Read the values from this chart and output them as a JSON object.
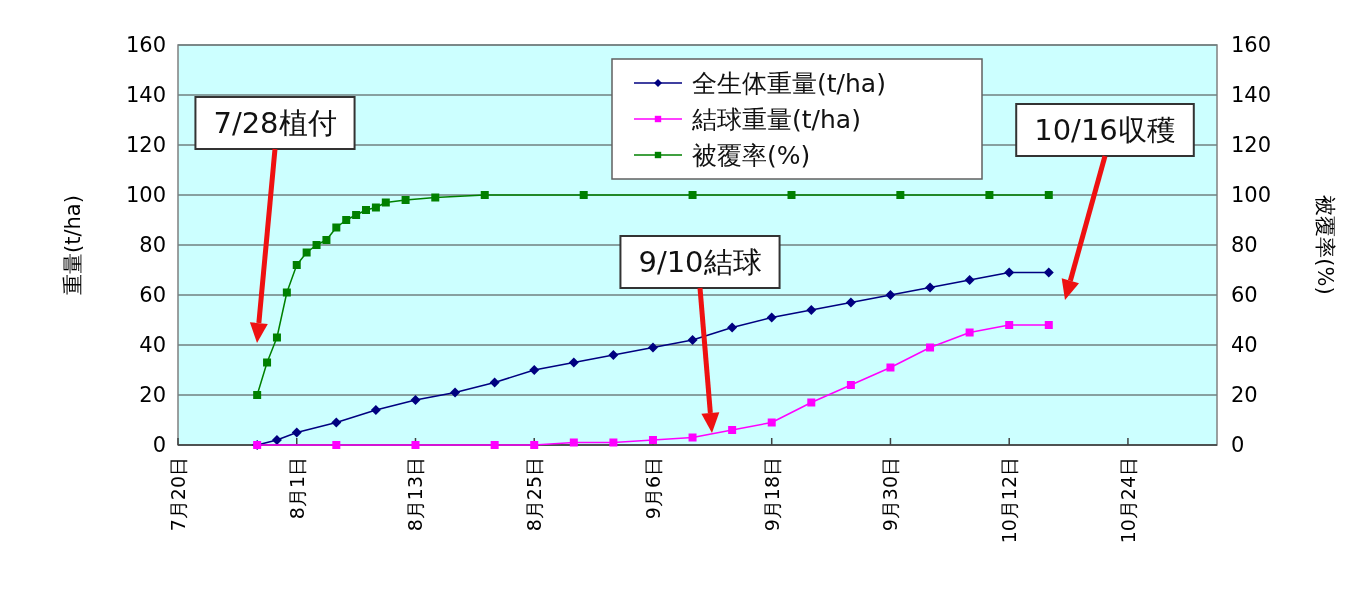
{
  "chart_data": {
    "type": "line",
    "ylabel": "重量(t/ha)",
    "y2label": "被覆率(%)",
    "xlim": [
      "--07-20",
      "--11-02"
    ],
    "xticks": [
      {
        "value": "--07-20",
        "label": "7月20日"
      },
      {
        "value": "--08-01",
        "label": "8月1日"
      },
      {
        "value": "--08-13",
        "label": "8月13日"
      },
      {
        "value": "--08-25",
        "label": "8月25日"
      },
      {
        "value": "--09-06",
        "label": "9月6日"
      },
      {
        "value": "--09-18",
        "label": "9月18日"
      },
      {
        "value": "--09-30",
        "label": "9月30日"
      },
      {
        "value": "--10-12",
        "label": "10月12日"
      },
      {
        "value": "--10-24",
        "label": "10月24日"
      }
    ],
    "ylim": [
      0,
      160
    ],
    "yticks": [
      0,
      20,
      40,
      60,
      80,
      100,
      120,
      140,
      160
    ],
    "y2lim": [
      0,
      160
    ],
    "y2ticks": [
      0,
      20,
      40,
      60,
      80,
      100,
      120,
      140,
      160
    ],
    "grid": "y",
    "legend": "top right",
    "series": [
      {
        "name": "全生体重量(t/ha)",
        "color": "#000080",
        "marker": "diamond",
        "x": [
          "--07-28",
          "--07-30",
          "--08-01",
          "--08-05",
          "--08-09",
          "--08-13",
          "--08-17",
          "--08-21",
          "--08-25",
          "--08-29",
          "--09-02",
          "--09-06",
          "--09-10",
          "--09-14",
          "--09-18",
          "--09-22",
          "--09-26",
          "--09-30",
          "--10-04",
          "--10-08",
          "--10-12",
          "--10-16"
        ],
        "values": [
          0,
          2,
          5,
          9,
          14,
          18,
          21,
          25,
          30,
          33,
          36,
          39,
          42,
          47,
          51,
          54,
          57,
          60,
          63,
          66,
          69,
          69
        ]
      },
      {
        "name": "結球重量(t/ha)",
        "color": "#ff00ff",
        "marker": "square",
        "x": [
          "--07-28",
          "--08-05",
          "--08-13",
          "--08-21",
          "--08-25",
          "--08-29",
          "--09-02",
          "--09-06",
          "--09-10",
          "--09-14",
          "--09-18",
          "--09-22",
          "--09-26",
          "--09-30",
          "--10-04",
          "--10-08",
          "--10-12",
          "--10-16"
        ],
        "values": [
          0,
          0,
          0,
          0,
          0,
          1,
          1,
          2,
          3,
          6,
          9,
          17,
          24,
          31,
          39,
          45,
          48,
          48
        ]
      },
      {
        "name": "被覆率(%)",
        "color": "#008000",
        "marker": "square",
        "axis": "y2",
        "x": [
          "--07-28",
          "--07-29",
          "--07-30",
          "--07-31",
          "--08-01",
          "--08-02",
          "--08-03",
          "--08-04",
          "--08-05",
          "--08-06",
          "--08-07",
          "--08-08",
          "--08-09",
          "--08-10",
          "--08-12",
          "--08-15",
          "--08-20",
          "--08-30",
          "--09-10",
          "--09-20",
          "--10-01",
          "--10-10",
          "--10-16"
        ],
        "values": [
          20,
          33,
          43,
          61,
          72,
          77,
          80,
          82,
          87,
          90,
          92,
          94,
          95,
          97,
          98,
          99,
          100,
          100,
          100,
          100,
          100,
          100,
          100
        ]
      }
    ],
    "annotations": [
      "7/28植付",
      "9/10結球",
      "10/16収穫"
    ]
  }
}
